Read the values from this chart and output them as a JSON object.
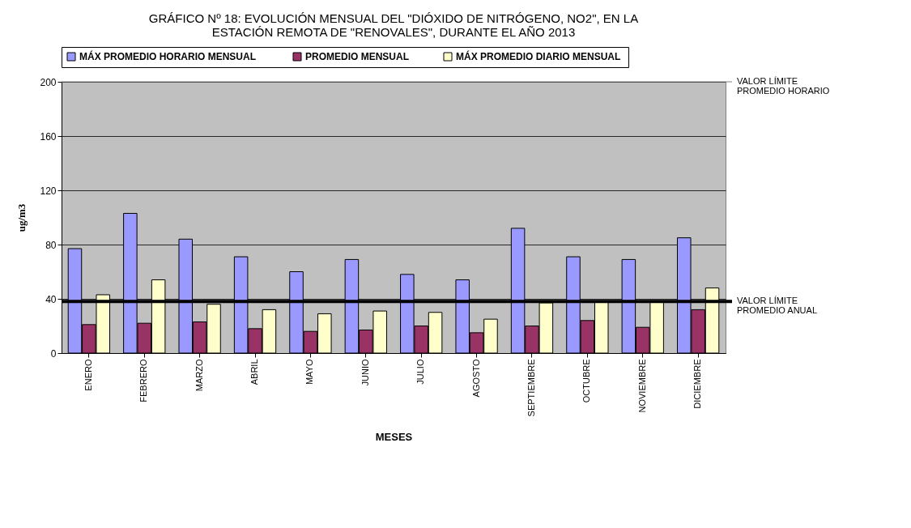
{
  "chart_data": {
    "type": "bar",
    "title": [
      "GRÁFICO Nº 18: EVOLUCIÓN MENSUAL DEL \"DIÓXIDO DE NITRÓGENO, NO2\", EN LA",
      "ESTACIÓN REMOTA DE \"RENOVALES\", DURANTE  EL AÑO 2013"
    ],
    "xlabel": "MESES",
    "ylabel": "ug/m3",
    "categories": [
      "ENERO",
      "FEBRERO",
      "MARZO",
      "ABRIL",
      "MAYO",
      "JUNIO",
      "JULIO",
      "AGOSTO",
      "SEPTIEMBRE",
      "OCTUBRE",
      "NOVIEMBRE",
      "DICIEMBRE"
    ],
    "series": [
      {
        "name": "MÁX PROMEDIO  HORARIO MENSUAL",
        "color": "#9999ff",
        "values": [
          77,
          103,
          84,
          71,
          60,
          69,
          58,
          54,
          92,
          71,
          69,
          85
        ]
      },
      {
        "name": "PROMEDIO MENSUAL",
        "color": "#993366",
        "values": [
          21,
          22,
          23,
          18,
          16,
          17,
          20,
          15,
          20,
          24,
          19,
          32
        ]
      },
      {
        "name": "MÁX PROMEDIO  DIARIO MENSUAL",
        "color": "#ffffcc",
        "values": [
          43,
          54,
          36,
          32,
          29,
          31,
          30,
          25,
          37,
          38,
          38,
          48
        ]
      }
    ],
    "ylim": [
      0,
      200
    ],
    "yticks": [
      0,
      40,
      80,
      120,
      160,
      200
    ],
    "grid": "y",
    "legend": "top",
    "ref_lines": [
      {
        "axis": "y",
        "value": 200,
        "label": "VALOR LÍMITE PROMEDIO HORARIO",
        "color": "#808080"
      },
      {
        "axis": "y",
        "value": 38,
        "label": "VALOR LÍMITE PROMEDIO ANUAL",
        "color": "#000000"
      }
    ]
  }
}
